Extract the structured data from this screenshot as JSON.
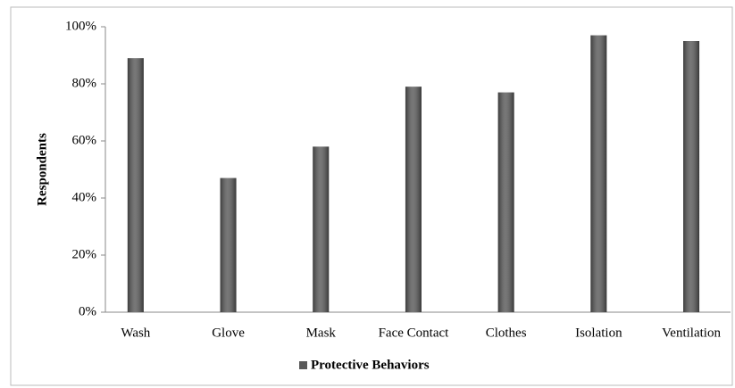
{
  "chart_data": {
    "type": "bar",
    "y_label": "Respondents",
    "categories": [
      "Wash",
      "Glove",
      "Mask",
      "Face Contact",
      "Clothes",
      "Isolation",
      "Ventilation"
    ],
    "series": [
      {
        "name": "Protective Behaviors",
        "color": "#5a5a5a",
        "values": [
          89,
          47,
          58,
          79,
          77,
          97,
          95
        ]
      }
    ],
    "ylim": [
      0,
      100
    ],
    "yticks": [
      {
        "value": 0,
        "label": "0%"
      },
      {
        "value": 20,
        "label": "20%"
      },
      {
        "value": 40,
        "label": "40%"
      },
      {
        "value": 60,
        "label": "60%"
      },
      {
        "value": 80,
        "label": "80%"
      },
      {
        "value": 100,
        "label": "100%"
      }
    ],
    "grid": false,
    "legend": "bottom"
  }
}
